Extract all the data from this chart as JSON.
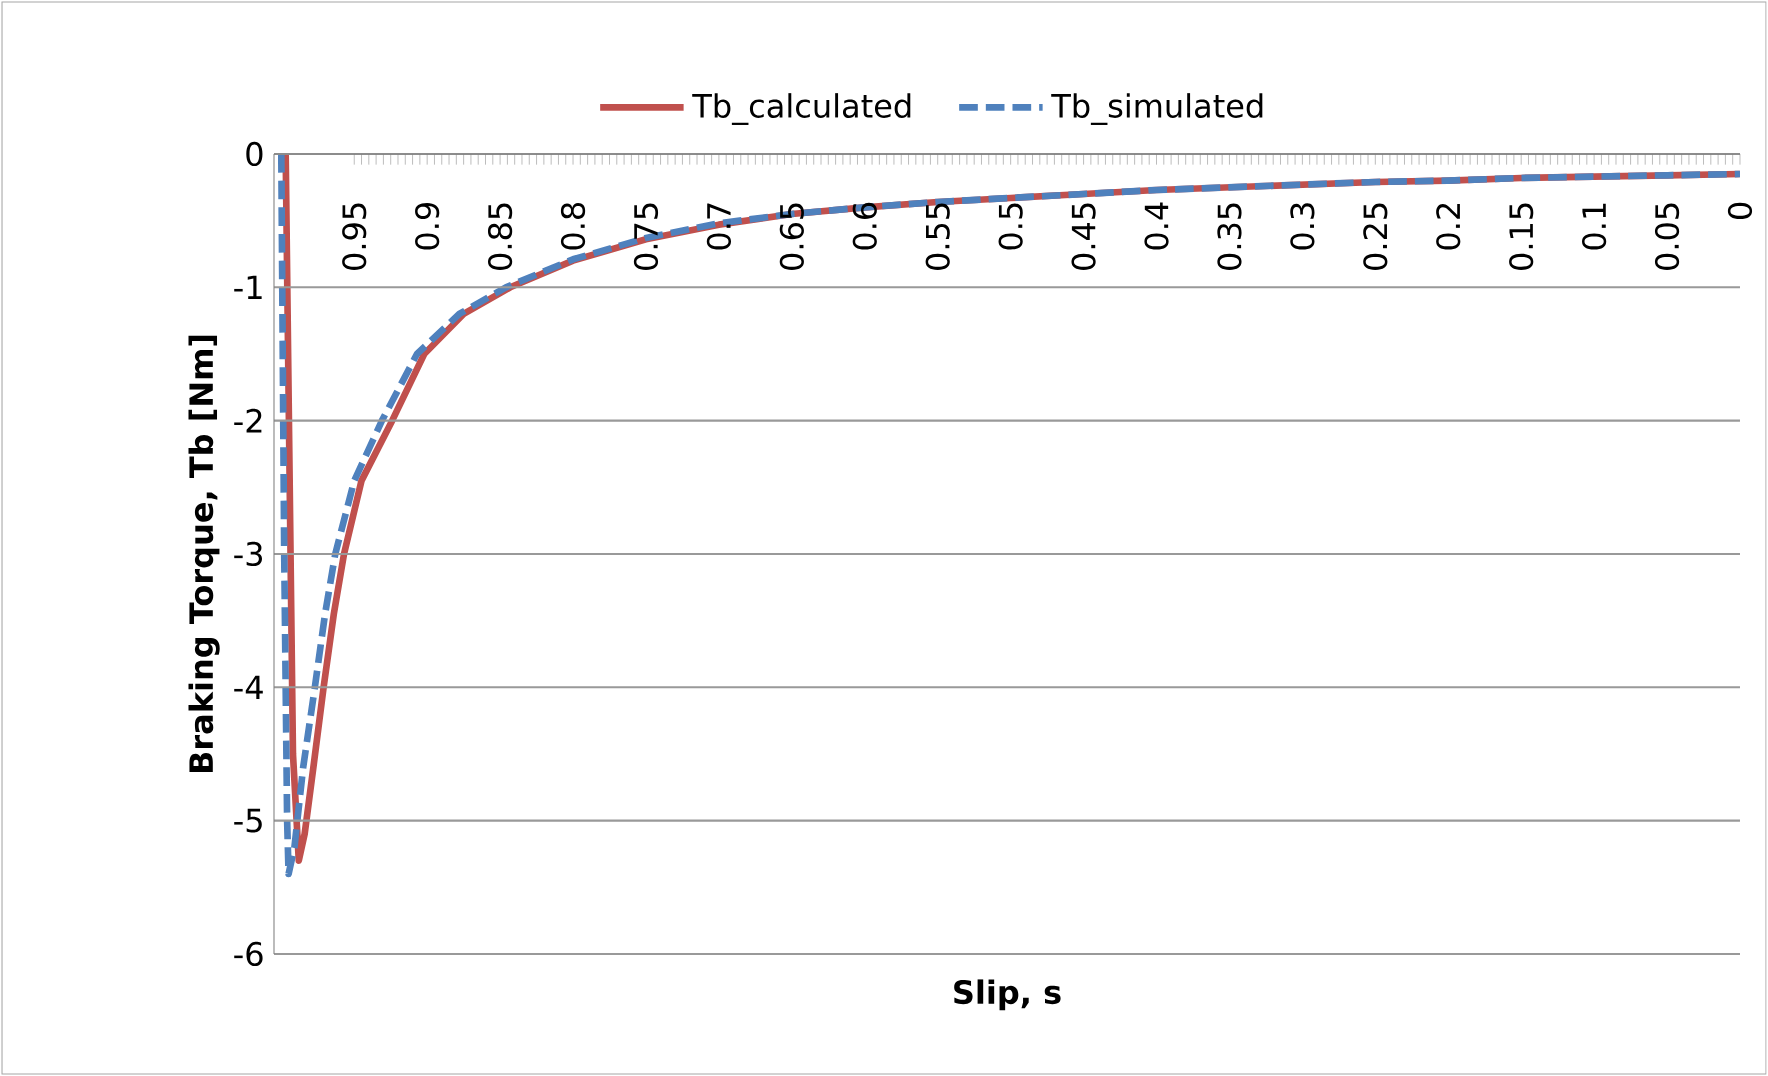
{
  "chart_data": {
    "type": "line",
    "xlabel": "Slip, s",
    "ylabel": "Braking Torque, Tb [Nm]",
    "xlim": [
      1.005,
      0
    ],
    "ylim": [
      -6,
      0
    ],
    "xticks": [
      0.95,
      0.9,
      0.85,
      0.8,
      0.75,
      0.7,
      0.65,
      0.6,
      0.55,
      0.5,
      0.45,
      0.4,
      0.35,
      0.3,
      0.25,
      0.2,
      0.15,
      0.1,
      0.05,
      0
    ],
    "yticks": [
      -6,
      -5,
      -4,
      -3,
      -2,
      -1,
      0
    ],
    "grid": "y",
    "legend": "top",
    "series": [
      {
        "name": "Tb_calculated",
        "color": "#c0504d",
        "line_style": "solid",
        "x": [
          0.997,
          0.992,
          0.988,
          0.984,
          0.978,
          0.971,
          0.964,
          0.957,
          0.945,
          0.924,
          0.902,
          0.875,
          0.843,
          0.8,
          0.75,
          0.7,
          0.65,
          0.6,
          0.55,
          0.5,
          0.45,
          0.4,
          0.35,
          0.3,
          0.25,
          0.2,
          0.15,
          0.1,
          0.05,
          0
        ],
        "values": [
          0,
          -4.5,
          -5.3,
          -5.1,
          -4.6,
          -4.0,
          -3.45,
          -3.0,
          -2.45,
          -2.0,
          -1.5,
          -1.2,
          -1.0,
          -0.8,
          -0.64,
          -0.53,
          -0.45,
          -0.4,
          -0.36,
          -0.33,
          -0.3,
          -0.27,
          -0.25,
          -0.23,
          -0.21,
          -0.2,
          -0.18,
          -0.17,
          -0.16,
          -0.15
        ]
      },
      {
        "name": "Tb_simulated",
        "color": "#4f81bd",
        "line_style": "dashed",
        "x": [
          1,
          0.998,
          0.996,
          0.995,
          0.991,
          0.985,
          0.977,
          0.97,
          0.963,
          0.95,
          0.931,
          0.907,
          0.878,
          0.846,
          0.8,
          0.75,
          0.7,
          0.65,
          0.6,
          0.55,
          0.5,
          0.45,
          0.4,
          0.35,
          0.3,
          0.25,
          0.2,
          0.15,
          0.1,
          0.05,
          0
        ],
        "values": [
          0,
          -3.0,
          -5.0,
          -5.4,
          -5.2,
          -4.6,
          -4.0,
          -3.45,
          -3.0,
          -2.45,
          -2.0,
          -1.5,
          -1.2,
          -1.0,
          -0.79,
          -0.63,
          -0.52,
          -0.45,
          -0.4,
          -0.36,
          -0.33,
          -0.3,
          -0.27,
          -0.25,
          -0.23,
          -0.21,
          -0.2,
          -0.18,
          -0.17,
          -0.16,
          -0.15
        ]
      }
    ]
  }
}
